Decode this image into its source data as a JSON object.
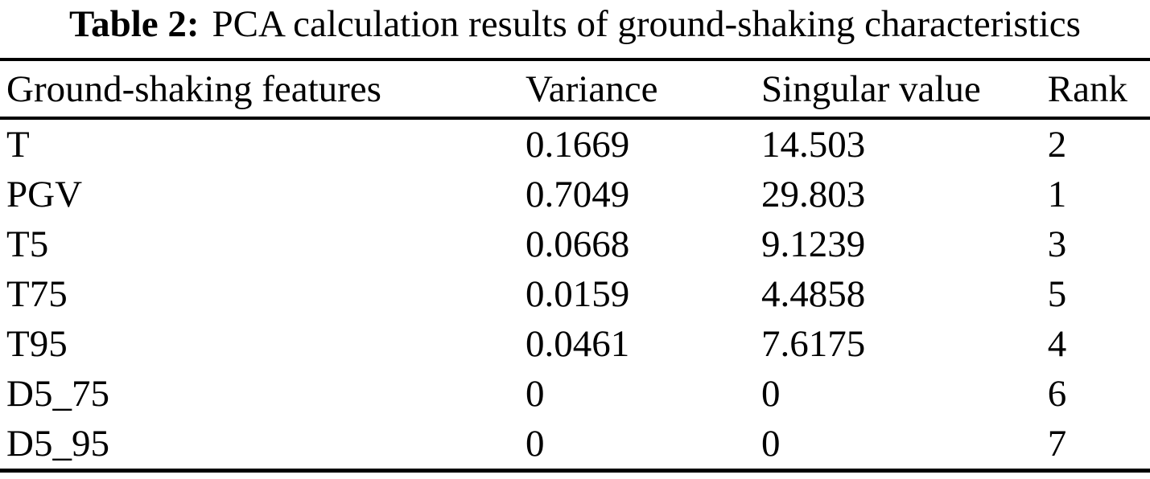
{
  "page": {
    "background_color": "#ffffff",
    "text_color": "#000000",
    "rule_color": "#000000"
  },
  "caption": {
    "label": "Table 2:",
    "title": "PCA calculation results of ground-shaking characteristics"
  },
  "table": {
    "columns": [
      "Ground-shaking features",
      "Variance",
      "Singular value",
      "Rank"
    ],
    "rows": [
      [
        "T",
        "0.1669",
        "14.503",
        "2"
      ],
      [
        "PGV",
        "0.7049",
        "29.803",
        "1"
      ],
      [
        "T5",
        "0.0668",
        "9.1239",
        "3"
      ],
      [
        "T75",
        "0.0159",
        "4.4858",
        "5"
      ],
      [
        "T95",
        "0.0461",
        "7.6175",
        "4"
      ],
      [
        "D5_75",
        "0",
        "0",
        "6"
      ],
      [
        "D5_95",
        "0",
        "0",
        "7"
      ]
    ]
  }
}
